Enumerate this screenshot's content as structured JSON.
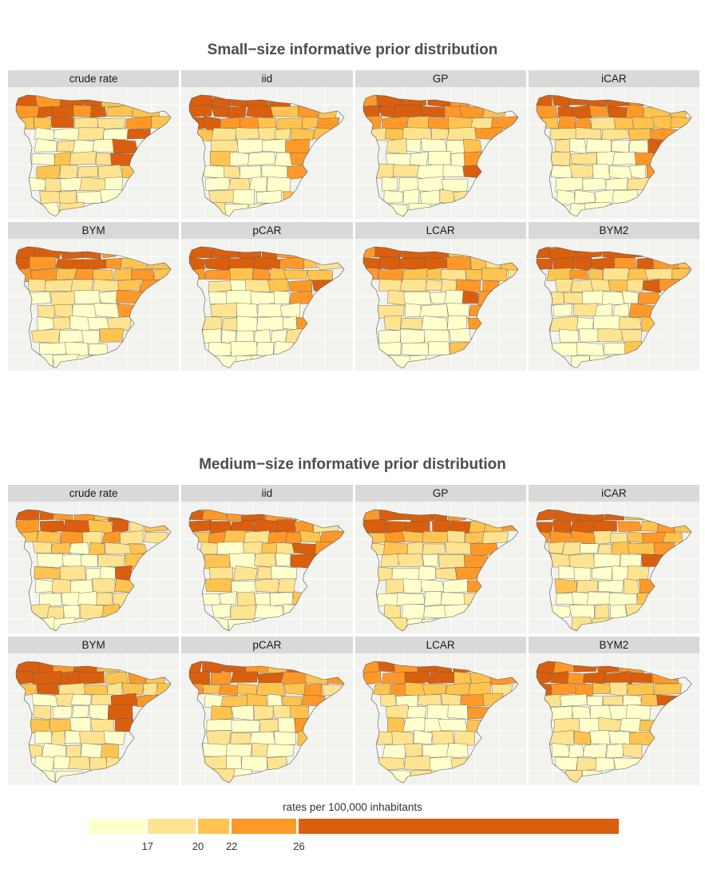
{
  "groups": [
    {
      "title": "Small−size informative prior distribution",
      "panels": [
        {
          "label": "crude rate",
          "mix": 0.9,
          "s": 1
        },
        {
          "label": "iid",
          "mix": 0.3,
          "s": 2
        },
        {
          "label": "GP",
          "mix": 0.15,
          "s": 3
        },
        {
          "label": "iCAR",
          "mix": 0.2,
          "s": 4
        },
        {
          "label": "BYM",
          "mix": 0.25,
          "s": 5
        },
        {
          "label": "pCAR",
          "mix": 0.2,
          "s": 6
        },
        {
          "label": "LCAR",
          "mix": 0.2,
          "s": 7
        },
        {
          "label": "BYM2",
          "mix": 0.25,
          "s": 8
        }
      ]
    },
    {
      "title": "Medium−size informative prior distribution",
      "panels": [
        {
          "label": "crude rate",
          "mix": 0.9,
          "s": 11
        },
        {
          "label": "iid",
          "mix": 0.6,
          "s": 12
        },
        {
          "label": "GP",
          "mix": 0.45,
          "s": 13
        },
        {
          "label": "iCAR",
          "mix": 0.5,
          "s": 14
        },
        {
          "label": "BYM",
          "mix": 0.6,
          "s": 15
        },
        {
          "label": "pCAR",
          "mix": 0.5,
          "s": 16
        },
        {
          "label": "LCAR",
          "mix": 0.5,
          "s": 17
        },
        {
          "label": "BYM2",
          "mix": 0.55,
          "s": 18
        }
      ]
    }
  ],
  "legend": {
    "title": "rates per 100,000 inhabitants",
    "min": 13.5,
    "max": 45,
    "breaks": [
      17,
      20,
      22,
      26
    ],
    "colors": [
      "#ffffcc",
      "#fee391",
      "#fec44f",
      "#fe9929",
      "#d95f0e"
    ]
  }
}
